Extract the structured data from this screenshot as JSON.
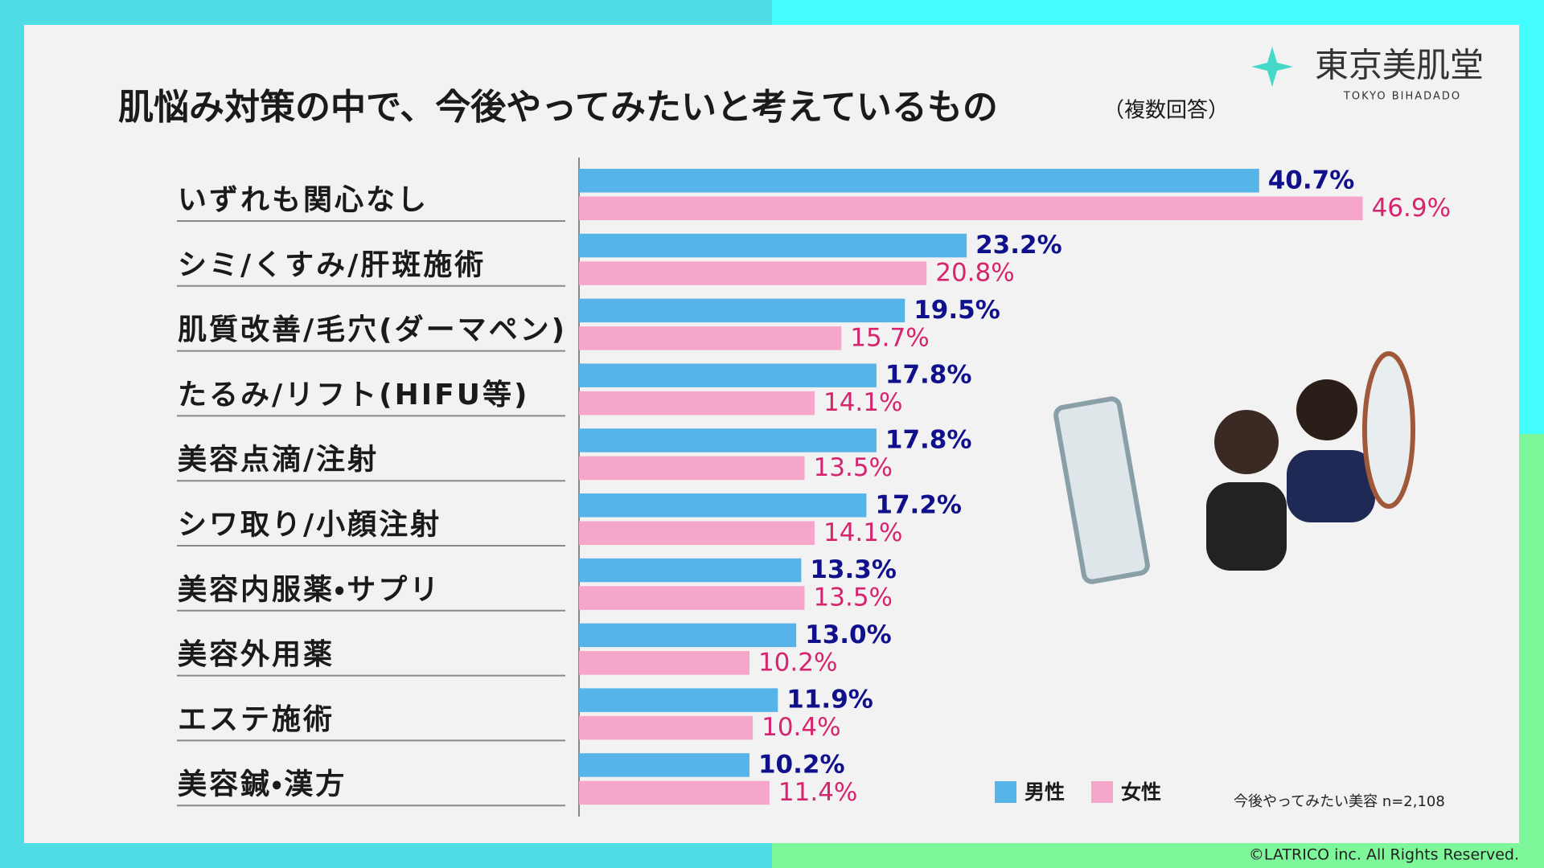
{
  "chart_data": {
    "type": "hbar",
    "title": "肌悩み対策の中で、今後やってみたいと考えているもの",
    "subtitle": "（複数回答）",
    "categories": [
      "いずれも関心なし",
      "シミ/くすみ/肝斑施術",
      "肌質改善/毛穴(ダーマペン)",
      "たるみ/リフト(HIFU等)",
      "美容点滴/注射",
      "シワ取り/小顔注射",
      "美容内服薬・サプリ",
      "美容外用薬",
      "エステ施術",
      "美容鍼・漢方"
    ],
    "series": [
      {
        "name": "男性",
        "color": "#56b4e9",
        "label_color": "#10108c",
        "values": [
          40.7,
          23.2,
          19.5,
          17.8,
          17.8,
          17.2,
          13.3,
          13.0,
          11.9,
          10.2
        ],
        "value_labels": [
          "40.7%",
          "23.2%",
          "19.5%",
          "17.8%",
          "17.8%",
          "17.2%",
          "13.3%",
          "13.0%",
          "11.9%",
          "10.2%"
        ]
      },
      {
        "name": "女性",
        "color": "#f5a6c9",
        "label_color": "#d6246e",
        "values": [
          46.9,
          20.8,
          15.7,
          14.1,
          13.5,
          14.1,
          13.5,
          10.2,
          10.4,
          11.4
        ],
        "value_labels": [
          "46.9%",
          "20.8%",
          "15.7%",
          "14.1%",
          "13.5%",
          "14.1%",
          "13.5%",
          "10.2%",
          "10.4%",
          "11.4%"
        ]
      }
    ],
    "xlim": [
      0,
      50
    ],
    "note": "今後やってみたい美容 n=2,108"
  },
  "logo": {
    "name": "東京美肌堂",
    "romaji": "TOKYO BIHADADO"
  },
  "copyright": "©LATRICO inc. All Rights Reserved."
}
